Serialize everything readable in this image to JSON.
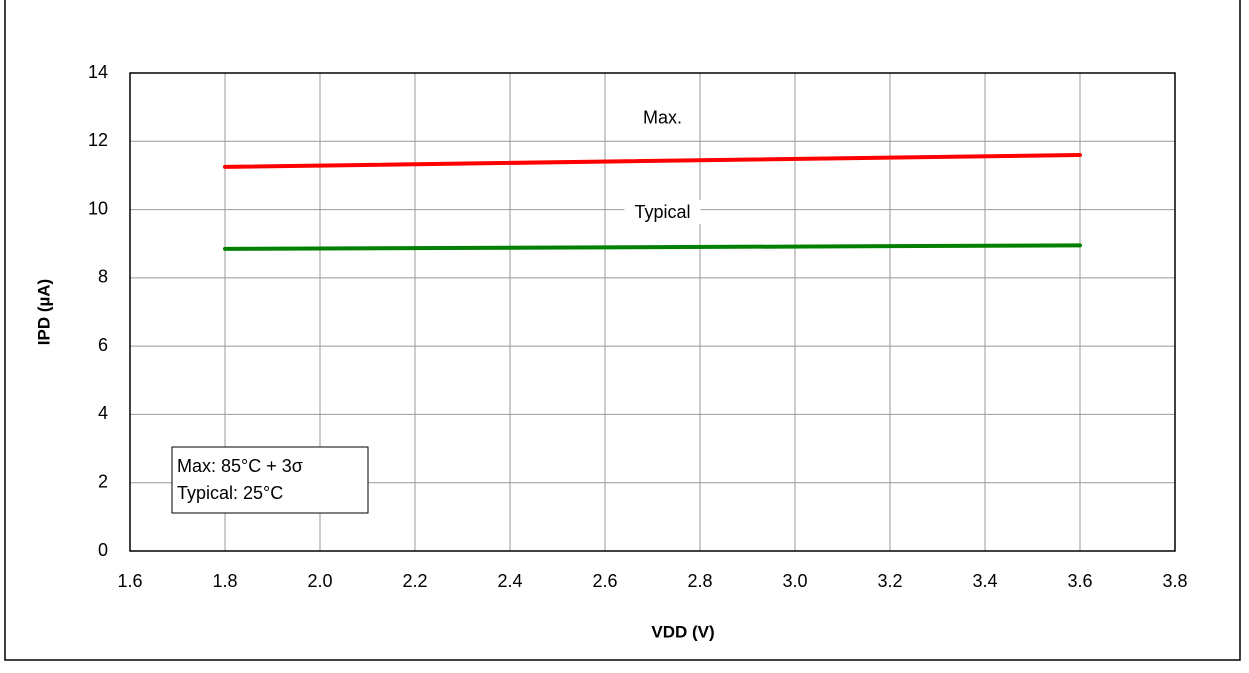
{
  "chart_data": {
    "type": "line",
    "xlabel": "VDD (V)",
    "ylabel": "IPD (µA)",
    "x": [
      1.8,
      3.6
    ],
    "series": [
      {
        "name": "Max.",
        "color": "#ff0000",
        "values": [
          11.25,
          11.6
        ]
      },
      {
        "name": "Typical",
        "color": "#008000",
        "values": [
          8.85,
          8.95
        ]
      }
    ],
    "annotations": [
      "Max: 85°C + 3σ",
      "Typical: 25°C"
    ],
    "xlim": [
      1.6,
      3.8
    ],
    "xticks": [
      1.6,
      1.8,
      {
        "value": 2,
        "label": "2.0"
      },
      2.2,
      2.4,
      2.6,
      2.8,
      {
        "value": 3,
        "label": "3.0"
      },
      3.2,
      3.4,
      3.6,
      3.8
    ],
    "ylim": [
      0,
      14
    ],
    "yticks": [
      0,
      2,
      4,
      6,
      8,
      10,
      12,
      14
    ],
    "grid": true
  }
}
